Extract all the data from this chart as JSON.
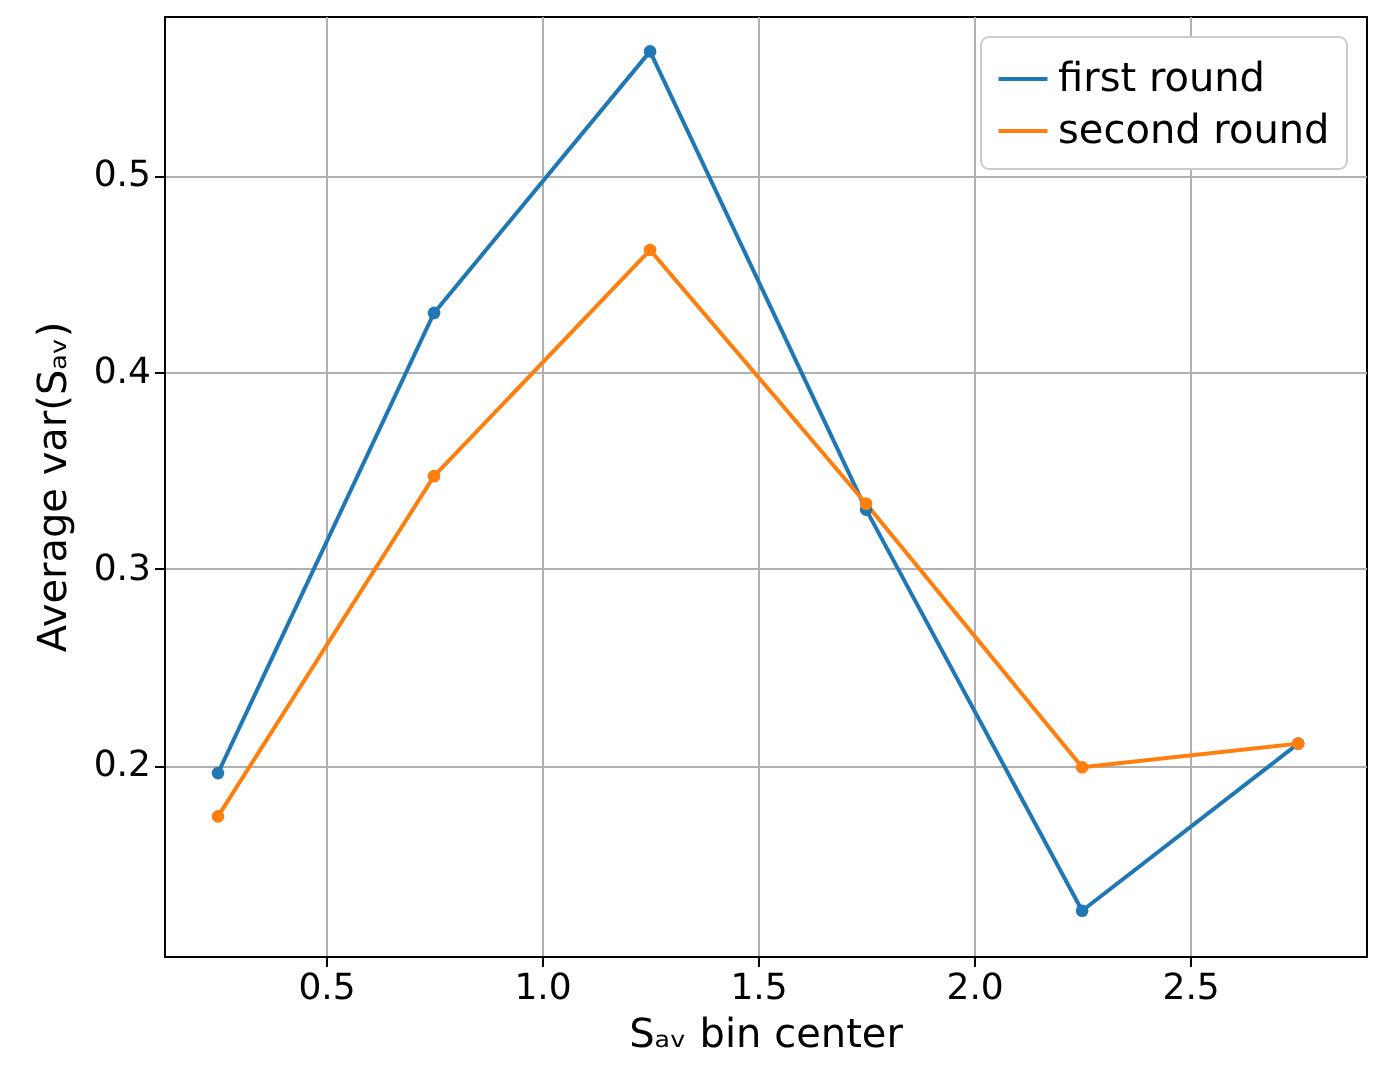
{
  "chart_data": {
    "type": "line",
    "xlabel": "Sₐᵥ bin center",
    "ylabel": "Average var(Sₐᵥ)",
    "x": [
      0.25,
      0.75,
      1.25,
      1.75,
      2.25,
      2.75
    ],
    "series": [
      {
        "name": "first round",
        "color": "#1f77b4",
        "values": [
          0.196,
          0.43,
          0.563,
          0.33,
          0.126,
          0.211
        ]
      },
      {
        "name": "second round",
        "color": "#ff7f0e",
        "values": [
          0.174,
          0.347,
          0.462,
          0.333,
          0.199,
          0.211
        ]
      }
    ],
    "xlim": [
      0.125,
      2.907
    ],
    "xticks": [
      0.5,
      {
        "value": 1,
        "label": "1.0"
      },
      1.5,
      {
        "value": 2,
        "label": "2.0"
      },
      2.5
    ],
    "ylim": [
      0.103,
      0.581
    ],
    "yticks": [
      0.2,
      0.3,
      0.4,
      0.5
    ],
    "grid": true,
    "legend": "top right",
    "marker": "circle",
    "line_style": "solid"
  }
}
